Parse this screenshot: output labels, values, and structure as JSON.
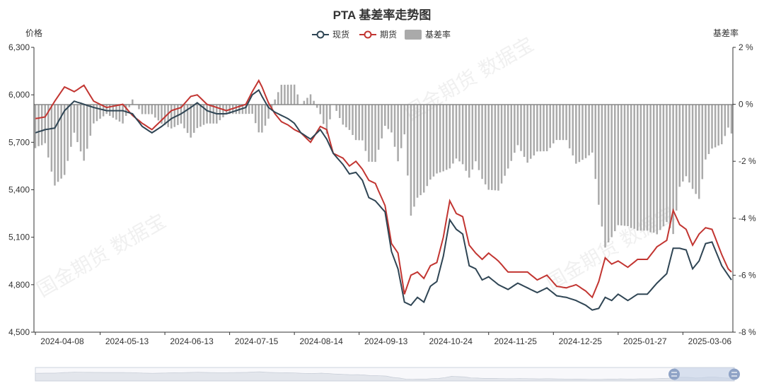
{
  "watermark": "国金期货 数据宝",
  "chart_data": {
    "type": "line+bar",
    "title": "PTA 基差率走势图",
    "left_axis_label": "价格",
    "right_axis_label": "基差率",
    "legend": [
      {
        "name": "现货",
        "type": "line",
        "color": "#2f4554"
      },
      {
        "name": "期货",
        "type": "line",
        "color": "#c23531"
      },
      {
        "name": "基差率",
        "type": "bar",
        "color": "#aaaaaa"
      }
    ],
    "y_left": {
      "min": 4500,
      "max": 6300,
      "ticks": [
        4500,
        4800,
        5100,
        5400,
        5700,
        6000,
        6300
      ],
      "tick_labels": [
        "4,500",
        "4,800",
        "5,100",
        "5,400",
        "5,700",
        "6,000",
        "6,300"
      ]
    },
    "y_right": {
      "min": -8,
      "max": 2,
      "ticks": [
        -8,
        -6,
        -4,
        -2,
        0,
        2
      ],
      "tick_labels": [
        "-8 %",
        "-6 %",
        "-4 %",
        "-2 %",
        "0 %",
        "2 %"
      ]
    },
    "x_tick_labels": [
      "2024-04-08",
      "2024-05-13",
      "2024-06-13",
      "2024-07-15",
      "2024-08-14",
      "2024-09-13",
      "2024-10-24",
      "2024-11-25",
      "2024-12-25",
      "2025-01-27",
      "2025-03-06"
    ],
    "x_tick_index": [
      0,
      20,
      40,
      60,
      80,
      100,
      120,
      140,
      160,
      180,
      200
    ],
    "n_points": 216,
    "spot_anchors": [
      [
        0,
        5760
      ],
      [
        3,
        5780
      ],
      [
        6,
        5790
      ],
      [
        9,
        5900
      ],
      [
        12,
        5960
      ],
      [
        15,
        5940
      ],
      [
        18,
        5920
      ],
      [
        22,
        5900
      ],
      [
        27,
        5900
      ],
      [
        30,
        5880
      ],
      [
        33,
        5800
      ],
      [
        36,
        5760
      ],
      [
        39,
        5800
      ],
      [
        42,
        5850
      ],
      [
        45,
        5880
      ],
      [
        48,
        5920
      ],
      [
        50,
        5950
      ],
      [
        53,
        5900
      ],
      [
        56,
        5880
      ],
      [
        59,
        5880
      ],
      [
        62,
        5900
      ],
      [
        65,
        5920
      ],
      [
        67,
        6000
      ],
      [
        69,
        6030
      ],
      [
        70,
        5990
      ],
      [
        72,
        5920
      ],
      [
        74,
        5890
      ],
      [
        76,
        5870
      ],
      [
        78,
        5850
      ],
      [
        80,
        5820
      ],
      [
        82,
        5760
      ],
      [
        85,
        5720
      ],
      [
        88,
        5780
      ],
      [
        90,
        5720
      ],
      [
        92,
        5630
      ],
      [
        95,
        5560
      ],
      [
        97,
        5500
      ],
      [
        99,
        5510
      ],
      [
        101,
        5460
      ],
      [
        103,
        5350
      ],
      [
        105,
        5330
      ],
      [
        108,
        5260
      ],
      [
        110,
        5010
      ],
      [
        112,
        4900
      ],
      [
        114,
        4690
      ],
      [
        116,
        4670
      ],
      [
        118,
        4720
      ],
      [
        120,
        4690
      ],
      [
        122,
        4790
      ],
      [
        124,
        4820
      ],
      [
        126,
        4980
      ],
      [
        128,
        5210
      ],
      [
        130,
        5150
      ],
      [
        132,
        5120
      ],
      [
        134,
        4920
      ],
      [
        136,
        4900
      ],
      [
        138,
        4830
      ],
      [
        140,
        4850
      ],
      [
        143,
        4800
      ],
      [
        146,
        4770
      ],
      [
        149,
        4810
      ],
      [
        152,
        4780
      ],
      [
        155,
        4750
      ],
      [
        158,
        4780
      ],
      [
        161,
        4730
      ],
      [
        164,
        4720
      ],
      [
        167,
        4700
      ],
      [
        170,
        4670
      ],
      [
        172,
        4640
      ],
      [
        174,
        4650
      ],
      [
        176,
        4720
      ],
      [
        178,
        4700
      ],
      [
        180,
        4740
      ],
      [
        183,
        4700
      ],
      [
        186,
        4740
      ],
      [
        189,
        4740
      ],
      [
        192,
        4810
      ],
      [
        195,
        4870
      ],
      [
        197,
        5030
      ],
      [
        199,
        5030
      ],
      [
        201,
        5020
      ],
      [
        203,
        4900
      ],
      [
        205,
        4950
      ],
      [
        207,
        5060
      ],
      [
        209,
        5070
      ],
      [
        212,
        4920
      ],
      [
        214,
        4860
      ],
      [
        215,
        4830
      ]
    ],
    "futures_anchors": [
      [
        0,
        5850
      ],
      [
        3,
        5860
      ],
      [
        6,
        5960
      ],
      [
        9,
        6050
      ],
      [
        12,
        6020
      ],
      [
        15,
        6060
      ],
      [
        18,
        5960
      ],
      [
        22,
        5920
      ],
      [
        27,
        5940
      ],
      [
        30,
        5870
      ],
      [
        33,
        5820
      ],
      [
        36,
        5780
      ],
      [
        39,
        5840
      ],
      [
        42,
        5900
      ],
      [
        45,
        5920
      ],
      [
        48,
        5990
      ],
      [
        50,
        6000
      ],
      [
        53,
        5940
      ],
      [
        56,
        5920
      ],
      [
        59,
        5900
      ],
      [
        62,
        5920
      ],
      [
        65,
        5940
      ],
      [
        67,
        6020
      ],
      [
        69,
        6090
      ],
      [
        70,
        6050
      ],
      [
        72,
        5950
      ],
      [
        74,
        5880
      ],
      [
        76,
        5830
      ],
      [
        78,
        5810
      ],
      [
        80,
        5780
      ],
      [
        82,
        5760
      ],
      [
        85,
        5700
      ],
      [
        88,
        5800
      ],
      [
        90,
        5780
      ],
      [
        92,
        5630
      ],
      [
        95,
        5600
      ],
      [
        97,
        5550
      ],
      [
        99,
        5580
      ],
      [
        101,
        5530
      ],
      [
        103,
        5460
      ],
      [
        105,
        5440
      ],
      [
        108,
        5300
      ],
      [
        110,
        5060
      ],
      [
        112,
        5000
      ],
      [
        114,
        4740
      ],
      [
        116,
        4860
      ],
      [
        118,
        4880
      ],
      [
        120,
        4840
      ],
      [
        122,
        4920
      ],
      [
        124,
        4940
      ],
      [
        126,
        5100
      ],
      [
        128,
        5330
      ],
      [
        130,
        5250
      ],
      [
        132,
        5230
      ],
      [
        134,
        5050
      ],
      [
        136,
        5000
      ],
      [
        138,
        4960
      ],
      [
        140,
        5000
      ],
      [
        143,
        4950
      ],
      [
        146,
        4880
      ],
      [
        149,
        4880
      ],
      [
        152,
        4880
      ],
      [
        155,
        4830
      ],
      [
        158,
        4860
      ],
      [
        161,
        4790
      ],
      [
        164,
        4780
      ],
      [
        167,
        4800
      ],
      [
        170,
        4760
      ],
      [
        172,
        4720
      ],
      [
        174,
        4820
      ],
      [
        176,
        4970
      ],
      [
        178,
        4930
      ],
      [
        180,
        4950
      ],
      [
        183,
        4910
      ],
      [
        186,
        4960
      ],
      [
        189,
        4960
      ],
      [
        192,
        5040
      ],
      [
        195,
        5080
      ],
      [
        197,
        5270
      ],
      [
        199,
        5180
      ],
      [
        201,
        5150
      ],
      [
        203,
        5050
      ],
      [
        205,
        5120
      ],
      [
        207,
        5160
      ],
      [
        209,
        5150
      ],
      [
        212,
        4990
      ],
      [
        214,
        4900
      ],
      [
        215,
        4880
      ]
    ]
  }
}
